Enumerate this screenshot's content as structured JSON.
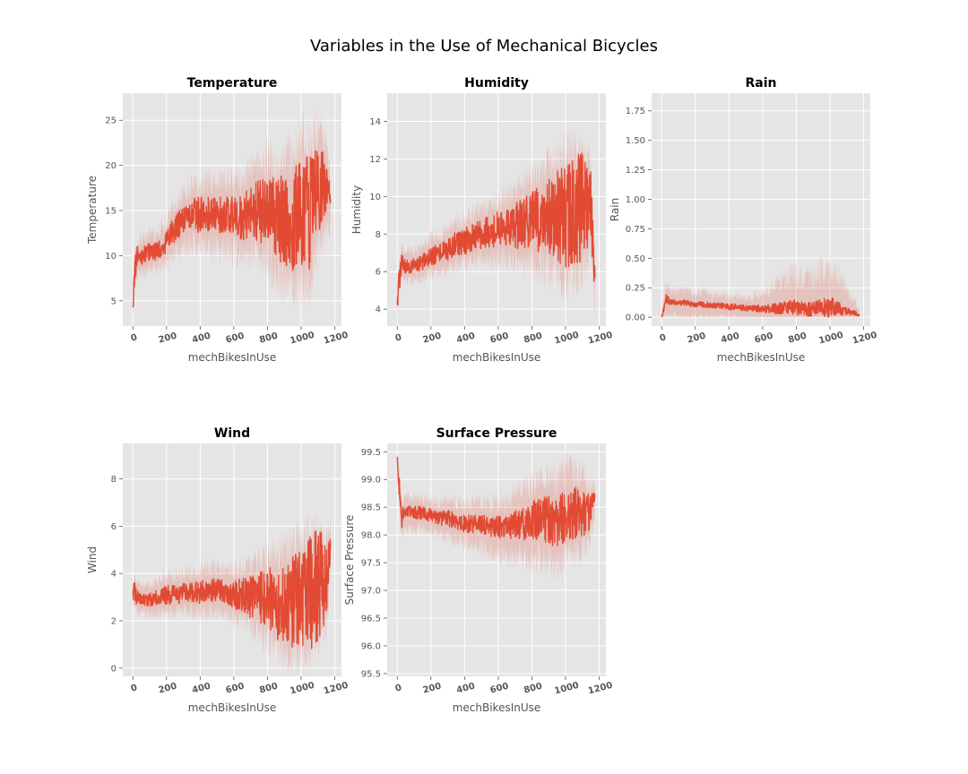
{
  "figure": {
    "suptitle": "Variables in the Use of Mechanical Bicycles",
    "colors": {
      "line": "#E24A33",
      "band": "#E24A33",
      "plot_bg": "#E5E5E5",
      "grid": "#FFFFFF"
    }
  },
  "chart_data": [
    {
      "type": "line",
      "title": "Temperature",
      "xlabel": "mechBikesInUse",
      "ylabel": "Temperature",
      "xlim": [
        -60,
        1240
      ],
      "ylim": [
        2.2,
        28.0
      ],
      "xticks": [
        0,
        200,
        400,
        600,
        800,
        1000,
        1200
      ],
      "yticks": [
        5,
        10,
        15,
        20,
        25
      ],
      "ytick_labels": [
        "5",
        "10",
        "15",
        "20",
        "25"
      ],
      "grid": true,
      "series": [
        {
          "x": [
            0,
            10,
            25,
            50,
            100,
            150,
            200,
            250,
            300,
            350,
            400,
            450,
            500,
            550,
            600,
            650,
            700,
            750,
            800,
            850,
            900,
            950,
            1000,
            1050,
            1100,
            1150,
            1175
          ],
          "mean": [
            4,
            8.5,
            9.5,
            10,
            10.5,
            10.5,
            11.5,
            13,
            14,
            14.5,
            14.5,
            14.5,
            14.5,
            14.5,
            14.5,
            14,
            15,
            15,
            15,
            14,
            14,
            14,
            15,
            15,
            17,
            18,
            16
          ],
          "swing": [
            1,
            1.5,
            1.5,
            1,
            1,
            1,
            1.2,
            1.5,
            1.5,
            1.8,
            2,
            2,
            2,
            2,
            2.2,
            2.5,
            3,
            3.5,
            4,
            4.5,
            5,
            6,
            6,
            7,
            6,
            3,
            1
          ],
          "band": [
            1,
            2,
            2,
            2,
            2,
            2,
            2.5,
            3,
            3,
            3.5,
            3.5,
            4,
            4,
            4,
            4.5,
            4.5,
            5,
            5.5,
            6,
            6.5,
            7,
            7.5,
            8,
            8,
            7,
            5,
            3
          ]
        }
      ]
    },
    {
      "type": "line",
      "title": "Humidity",
      "xlabel": "mechBikesInUse",
      "ylabel": "Humidity",
      "xlim": [
        -60,
        1240
      ],
      "ylim": [
        3.1,
        15.5
      ],
      "xticks": [
        0,
        200,
        400,
        600,
        800,
        1000,
        1200
      ],
      "yticks": [
        4,
        6,
        8,
        10,
        12,
        14
      ],
      "ytick_labels": [
        "4",
        "6",
        "8",
        "10",
        "12",
        "14"
      ],
      "grid": true,
      "series": [
        {
          "x": [
            0,
            10,
            25,
            50,
            100,
            150,
            200,
            250,
            300,
            350,
            400,
            450,
            500,
            550,
            600,
            650,
            700,
            750,
            800,
            850,
            900,
            950,
            1000,
            1050,
            1100,
            1150,
            1175
          ],
          "mean": [
            4,
            5.5,
            6.5,
            6.3,
            6.3,
            6.5,
            6.8,
            7,
            7.2,
            7.5,
            7.6,
            7.8,
            8,
            8.1,
            8.2,
            8.3,
            8.4,
            8.6,
            8.7,
            8.8,
            9,
            9,
            9,
            9.2,
            9.5,
            9.5,
            5.5
          ],
          "swing": [
            0.6,
            0.8,
            0.5,
            0.4,
            0.4,
            0.4,
            0.5,
            0.5,
            0.6,
            0.7,
            0.7,
            0.8,
            0.8,
            0.9,
            1,
            1,
            1.2,
            1.4,
            1.6,
            1.8,
            2,
            2.5,
            2.8,
            3,
            3,
            2,
            0.6
          ],
          "band": [
            0.5,
            0.8,
            0.8,
            0.8,
            0.8,
            0.9,
            1,
            1,
            1.1,
            1.2,
            1.2,
            1.3,
            1.4,
            1.5,
            1.6,
            1.8,
            2,
            2.2,
            2.4,
            2.6,
            3,
            3.2,
            3.5,
            3.5,
            3.2,
            2.5,
            1.5
          ]
        }
      ]
    },
    {
      "type": "line",
      "title": "Rain",
      "xlabel": "mechBikesInUse",
      "ylabel": "Rain",
      "xlim": [
        -60,
        1240
      ],
      "ylim": [
        -0.075,
        1.9
      ],
      "xticks": [
        0,
        200,
        400,
        600,
        800,
        1000,
        1200
      ],
      "yticks": [
        0,
        0.25,
        0.5,
        0.75,
        1.0,
        1.25,
        1.5,
        1.75
      ],
      "ytick_labels": [
        "0.00",
        "0.25",
        "0.50",
        "0.75",
        "1.00",
        "1.25",
        "1.50",
        "1.75"
      ],
      "grid": true,
      "series": [
        {
          "x": [
            0,
            10,
            25,
            50,
            100,
            150,
            200,
            250,
            300,
            350,
            400,
            450,
            500,
            550,
            600,
            650,
            700,
            750,
            800,
            850,
            900,
            950,
            1000,
            1050,
            1100,
            1150,
            1175
          ],
          "mean": [
            0,
            0.05,
            0.15,
            0.12,
            0.12,
            0.11,
            0.1,
            0.1,
            0.09,
            0.09,
            0.08,
            0.08,
            0.07,
            0.07,
            0.06,
            0.06,
            0.06,
            0.06,
            0.06,
            0.05,
            0.05,
            0.06,
            0.06,
            0.06,
            0.04,
            0.03,
            0.01
          ],
          "swing": [
            0,
            0.05,
            0.1,
            0.05,
            0.05,
            0.05,
            0.05,
            0.05,
            0.05,
            0.05,
            0.05,
            0.05,
            0.05,
            0.06,
            0.06,
            0.08,
            0.1,
            0.12,
            0.14,
            0.12,
            0.12,
            0.15,
            0.18,
            0.12,
            0.06,
            0.04,
            0.01
          ],
          "band": [
            0.02,
            0.08,
            0.15,
            0.12,
            0.12,
            0.12,
            0.12,
            0.12,
            0.11,
            0.1,
            0.1,
            0.1,
            0.1,
            0.12,
            0.14,
            0.2,
            0.25,
            0.3,
            0.3,
            0.3,
            0.3,
            0.35,
            0.35,
            0.3,
            0.2,
            0.1,
            0.05
          ]
        }
      ]
    },
    {
      "type": "line",
      "title": "Wind",
      "xlabel": "mechBikesInUse",
      "ylabel": "Wind",
      "xlim": [
        -60,
        1240
      ],
      "ylim": [
        -0.35,
        9.5
      ],
      "xticks": [
        0,
        200,
        400,
        600,
        800,
        1000,
        1200
      ],
      "yticks": [
        0,
        2,
        4,
        6,
        8
      ],
      "ytick_labels": [
        "0",
        "2",
        "4",
        "6",
        "8"
      ],
      "grid": true,
      "series": [
        {
          "x": [
            0,
            10,
            25,
            50,
            100,
            150,
            200,
            250,
            300,
            350,
            400,
            450,
            500,
            550,
            600,
            650,
            700,
            750,
            800,
            850,
            900,
            950,
            1000,
            1050,
            1100,
            1150,
            1175
          ],
          "mean": [
            3,
            3.2,
            3,
            2.9,
            2.9,
            3,
            3.1,
            3.1,
            3.2,
            3.2,
            3.2,
            3.3,
            3.3,
            3.2,
            3.1,
            3.1,
            3,
            3,
            2.9,
            2.8,
            2.8,
            2.8,
            3,
            3.2,
            3.5,
            3.5,
            5
          ],
          "swing": [
            0.4,
            0.5,
            0.3,
            0.2,
            0.3,
            0.3,
            0.4,
            0.4,
            0.4,
            0.4,
            0.5,
            0.5,
            0.5,
            0.5,
            0.6,
            0.7,
            0.9,
            1.1,
            1.3,
            1.6,
            1.8,
            2,
            2.2,
            2.5,
            2.5,
            1.8,
            0.5
          ],
          "band": [
            0.4,
            0.6,
            0.6,
            0.6,
            0.6,
            0.7,
            0.8,
            0.8,
            0.8,
            0.9,
            0.9,
            1,
            1,
            1,
            1.1,
            1.2,
            1.4,
            1.6,
            1.8,
            2,
            2.2,
            2.4,
            2.5,
            2.5,
            2.2,
            1.8,
            1
          ]
        }
      ]
    },
    {
      "type": "line",
      "title": "Surface Pressure",
      "xlabel": "mechBikesInUse",
      "ylabel": "Surface Pressure",
      "xlim": [
        -60,
        1240
      ],
      "ylim": [
        95.45,
        99.65
      ],
      "xticks": [
        0,
        200,
        400,
        600,
        800,
        1000,
        1200
      ],
      "yticks": [
        95.5,
        96.0,
        96.5,
        97.0,
        97.5,
        98.0,
        98.5,
        99.0,
        99.5
      ],
      "ytick_labels": [
        "95.5",
        "96.0",
        "96.5",
        "97.0",
        "97.5",
        "98.0",
        "98.5",
        "99.0",
        "99.5"
      ],
      "grid": true,
      "series": [
        {
          "x": [
            0,
            10,
            25,
            50,
            100,
            150,
            200,
            250,
            300,
            350,
            400,
            450,
            500,
            550,
            600,
            650,
            700,
            750,
            800,
            850,
            900,
            950,
            1000,
            1050,
            1100,
            1150,
            1175
          ],
          "mean": [
            99.4,
            98.9,
            98.3,
            98.4,
            98.4,
            98.4,
            98.35,
            98.3,
            98.3,
            98.25,
            98.2,
            98.2,
            98.2,
            98.15,
            98.15,
            98.1,
            98.2,
            98.2,
            98.25,
            98.3,
            98.3,
            98.2,
            98.4,
            98.4,
            98.4,
            98.4,
            98.7
          ],
          "swing": [
            0.05,
            0.2,
            0.2,
            0.12,
            0.12,
            0.12,
            0.13,
            0.14,
            0.15,
            0.15,
            0.16,
            0.16,
            0.17,
            0.18,
            0.2,
            0.22,
            0.25,
            0.3,
            0.35,
            0.4,
            0.45,
            0.5,
            0.5,
            0.5,
            0.45,
            0.3,
            0.15
          ],
          "band": [
            0.1,
            0.3,
            0.3,
            0.3,
            0.3,
            0.3,
            0.3,
            0.32,
            0.34,
            0.36,
            0.38,
            0.4,
            0.42,
            0.45,
            0.5,
            0.55,
            0.6,
            0.65,
            0.7,
            0.75,
            0.8,
            0.85,
            0.85,
            0.8,
            0.7,
            0.5,
            0.3
          ]
        }
      ]
    }
  ]
}
